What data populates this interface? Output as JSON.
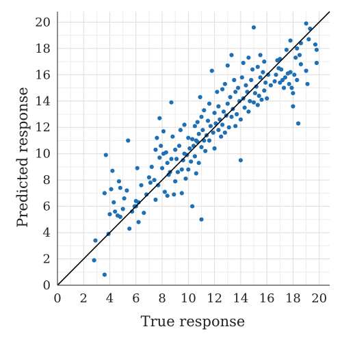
{
  "chart_data": {
    "type": "scatter",
    "xlabel": "True response",
    "ylabel": "Predicted response",
    "xlim": [
      0,
      20.8
    ],
    "ylim": [
      0,
      20.8
    ],
    "xticks": [
      "0",
      "2",
      "4",
      "6",
      "8",
      "10",
      "12",
      "14",
      "16",
      "18",
      "20"
    ],
    "yticks": [
      "0",
      "2",
      "4",
      "6",
      "8",
      "10",
      "12",
      "14",
      "16",
      "18",
      "20"
    ],
    "grid": true,
    "reference_line": {
      "from": [
        0,
        0
      ],
      "to": [
        20.8,
        20.8
      ],
      "color": "#000000"
    },
    "point_color": "#1f6fb5",
    "points": [
      [
        2.8,
        1.9
      ],
      [
        2.9,
        3.4
      ],
      [
        3.6,
        0.8
      ],
      [
        3.6,
        7.0
      ],
      [
        3.7,
        9.9
      ],
      [
        3.9,
        3.9
      ],
      [
        4.0,
        5.4
      ],
      [
        4.1,
        7.3
      ],
      [
        4.2,
        8.7
      ],
      [
        4.3,
        6.3
      ],
      [
        4.4,
        5.6
      ],
      [
        4.6,
        5.3
      ],
      [
        4.7,
        7.9
      ],
      [
        4.8,
        5.2
      ],
      [
        4.8,
        7.4
      ],
      [
        5.0,
        5.8
      ],
      [
        5.1,
        6.6
      ],
      [
        5.3,
        7.2
      ],
      [
        5.4,
        11.0
      ],
      [
        5.5,
        4.3
      ],
      [
        5.7,
        5.6
      ],
      [
        5.9,
        6.0
      ],
      [
        6.0,
        6.0
      ],
      [
        6.0,
        6.4
      ],
      [
        6.1,
        8.9
      ],
      [
        6.2,
        6.3
      ],
      [
        6.2,
        4.8
      ],
      [
        6.4,
        7.6
      ],
      [
        6.6,
        5.5
      ],
      [
        6.8,
        6.9
      ],
      [
        7.0,
        8.2
      ],
      [
        7.1,
        7.8
      ],
      [
        7.2,
        9.0
      ],
      [
        7.4,
        8.0
      ],
      [
        7.5,
        6.5
      ],
      [
        7.5,
        10.3
      ],
      [
        7.6,
        11.2
      ],
      [
        7.7,
        7.6
      ],
      [
        7.8,
        12.7
      ],
      [
        7.8,
        9.7
      ],
      [
        7.9,
        10.6
      ],
      [
        8.0,
        8.9
      ],
      [
        8.1,
        10.0
      ],
      [
        8.1,
        11.7
      ],
      [
        8.2,
        7.1
      ],
      [
        8.3,
        10.1
      ],
      [
        8.4,
        6.8
      ],
      [
        8.4,
        9.3
      ],
      [
        8.5,
        8.4
      ],
      [
        8.6,
        8.6
      ],
      [
        8.7,
        9.6
      ],
      [
        8.7,
        13.9
      ],
      [
        8.8,
        11.3
      ],
      [
        8.9,
        6.9
      ],
      [
        9.0,
        7.9
      ],
      [
        9.0,
        10.3
      ],
      [
        9.1,
        9.6
      ],
      [
        9.2,
        8.6
      ],
      [
        9.3,
        10.6
      ],
      [
        9.4,
        11.8
      ],
      [
        9.5,
        7.0
      ],
      [
        9.5,
        8.8
      ],
      [
        9.6,
        9.5
      ],
      [
        9.7,
        12.2
      ],
      [
        9.7,
        10.0
      ],
      [
        9.8,
        8.1
      ],
      [
        9.9,
        9.9
      ],
      [
        10.0,
        8.8
      ],
      [
        10.0,
        11.2
      ],
      [
        10.1,
        10.4
      ],
      [
        10.2,
        9.4
      ],
      [
        10.3,
        11.1
      ],
      [
        10.3,
        6.0
      ],
      [
        10.4,
        10.6
      ],
      [
        10.5,
        9.8
      ],
      [
        10.5,
        12.1
      ],
      [
        10.6,
        11.0
      ],
      [
        10.6,
        8.5
      ],
      [
        10.7,
        12.4
      ],
      [
        10.7,
        10.9
      ],
      [
        10.8,
        11.5
      ],
      [
        10.8,
        9.3
      ],
      [
        10.9,
        14.3
      ],
      [
        11.0,
        10.5
      ],
      [
        11.0,
        12.8
      ],
      [
        11.0,
        5.0
      ],
      [
        11.1,
        11.8
      ],
      [
        11.2,
        11.0
      ],
      [
        11.2,
        13.3
      ],
      [
        11.3,
        10.2
      ],
      [
        11.4,
        11.4
      ],
      [
        11.5,
        12.5
      ],
      [
        11.6,
        11.0
      ],
      [
        11.6,
        13.8
      ],
      [
        11.7,
        12.1
      ],
      [
        11.8,
        16.3
      ],
      [
        11.9,
        11.6
      ],
      [
        12.0,
        13.1
      ],
      [
        12.0,
        10.4
      ],
      [
        12.1,
        12.3
      ],
      [
        12.2,
        14.7
      ],
      [
        12.3,
        11.8
      ],
      [
        12.3,
        13.6
      ],
      [
        12.4,
        12.6
      ],
      [
        12.5,
        11.3
      ],
      [
        12.6,
        14.9
      ],
      [
        12.6,
        12.2
      ],
      [
        12.7,
        13.2
      ],
      [
        12.8,
        15.3
      ],
      [
        12.8,
        11.6
      ],
      [
        12.9,
        12.9
      ],
      [
        13.0,
        16.7
      ],
      [
        13.0,
        13.8
      ],
      [
        13.1,
        12.0
      ],
      [
        13.2,
        14.3
      ],
      [
        13.3,
        17.5
      ],
      [
        13.3,
        12.8
      ],
      [
        13.4,
        13.4
      ],
      [
        13.5,
        15.6
      ],
      [
        13.6,
        12.1
      ],
      [
        13.6,
        14.7
      ],
      [
        13.7,
        13.0
      ],
      [
        13.8,
        15.0
      ],
      [
        13.9,
        14.0
      ],
      [
        14.0,
        12.6
      ],
      [
        14.0,
        9.5
      ],
      [
        14.1,
        15.8
      ],
      [
        14.2,
        14.2
      ],
      [
        14.2,
        16.9
      ],
      [
        14.3,
        13.5
      ],
      [
        14.4,
        15.2
      ],
      [
        14.5,
        14.7
      ],
      [
        14.6,
        17.3
      ],
      [
        14.6,
        13.2
      ],
      [
        14.7,
        14.0
      ],
      [
        14.8,
        15.6
      ],
      [
        14.9,
        16.4
      ],
      [
        15.0,
        19.6
      ],
      [
        15.0,
        13.9
      ],
      [
        15.1,
        14.6
      ],
      [
        15.2,
        15.1
      ],
      [
        15.3,
        16.6
      ],
      [
        15.3,
        13.7
      ],
      [
        15.4,
        14.4
      ],
      [
        15.5,
        17.5
      ],
      [
        15.5,
        15.8
      ],
      [
        15.6,
        14.1
      ],
      [
        15.7,
        16.2
      ],
      [
        15.8,
        17.0
      ],
      [
        15.8,
        14.8
      ],
      [
        15.9,
        15.4
      ],
      [
        16.0,
        14.2
      ],
      [
        16.1,
        16.0
      ],
      [
        16.3,
        15.2
      ],
      [
        16.6,
        15.5
      ],
      [
        16.7,
        16.0
      ],
      [
        16.8,
        17.1
      ],
      [
        16.9,
        16.5
      ],
      [
        17.0,
        15.4
      ],
      [
        17.0,
        17.2
      ],
      [
        17.1,
        16.4
      ],
      [
        17.2,
        15.6
      ],
      [
        17.3,
        15.0
      ],
      [
        17.4,
        15.8
      ],
      [
        17.5,
        17.9
      ],
      [
        17.6,
        16.1
      ],
      [
        17.7,
        15.3
      ],
      [
        17.8,
        16.2
      ],
      [
        17.8,
        18.6
      ],
      [
        17.9,
        15.0
      ],
      [
        18.0,
        13.6
      ],
      [
        18.0,
        14.6
      ],
      [
        18.1,
        16.0
      ],
      [
        18.2,
        17.3
      ],
      [
        18.3,
        18.0
      ],
      [
        18.3,
        15.6
      ],
      [
        18.4,
        12.3
      ],
      [
        18.5,
        17.5
      ],
      [
        18.6,
        16.8
      ],
      [
        18.6,
        18.4
      ],
      [
        19.0,
        19.9
      ],
      [
        19.0,
        16.3
      ],
      [
        19.1,
        15.3
      ],
      [
        19.2,
        18.7
      ],
      [
        19.3,
        19.5
      ],
      [
        19.7,
        18.3
      ],
      [
        19.8,
        17.9
      ],
      [
        19.8,
        16.9
      ]
    ]
  }
}
